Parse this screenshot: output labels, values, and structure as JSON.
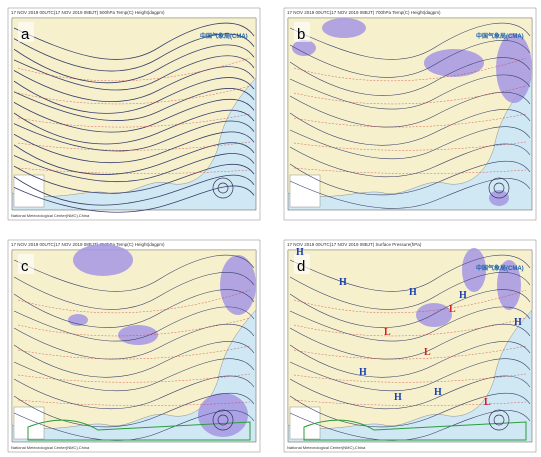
{
  "panels": [
    {
      "label": "a",
      "header": "17 NOV 2019 00UTC(17 NOV 2019 08BJT) 500hPa Temp(C) Height(dagpm)",
      "logo": "中国气象局(CMA)",
      "footer": "National Meteorological Center(NMC),China"
    },
    {
      "label": "b",
      "header": "17 NOV 2019 00UTC(17 NOV 2019 08BJT) 700hPa Temp(C) Height(dagpm)",
      "logo": "中国气象局(CMA)"
    },
    {
      "label": "c",
      "header": "17 NOV 2019 00UTC(17 NOV 2019 08BJT) 850hPa Temp(C) Height(dagpm)",
      "footer": "National Meteorological Center(NMC),China"
    },
    {
      "label": "d",
      "header": "17 NOV 2019 00UTC(17 NOV 2019 08BJT) Surface Pressure(hPa)",
      "logo": "中国气象局(CMA)",
      "footer": "National Meteorological Center(NMC),China",
      "marks": [
        "H",
        "H",
        "H",
        "H",
        "L",
        "L",
        "L",
        "H",
        "H",
        "H",
        "L",
        "H"
      ]
    }
  ]
}
